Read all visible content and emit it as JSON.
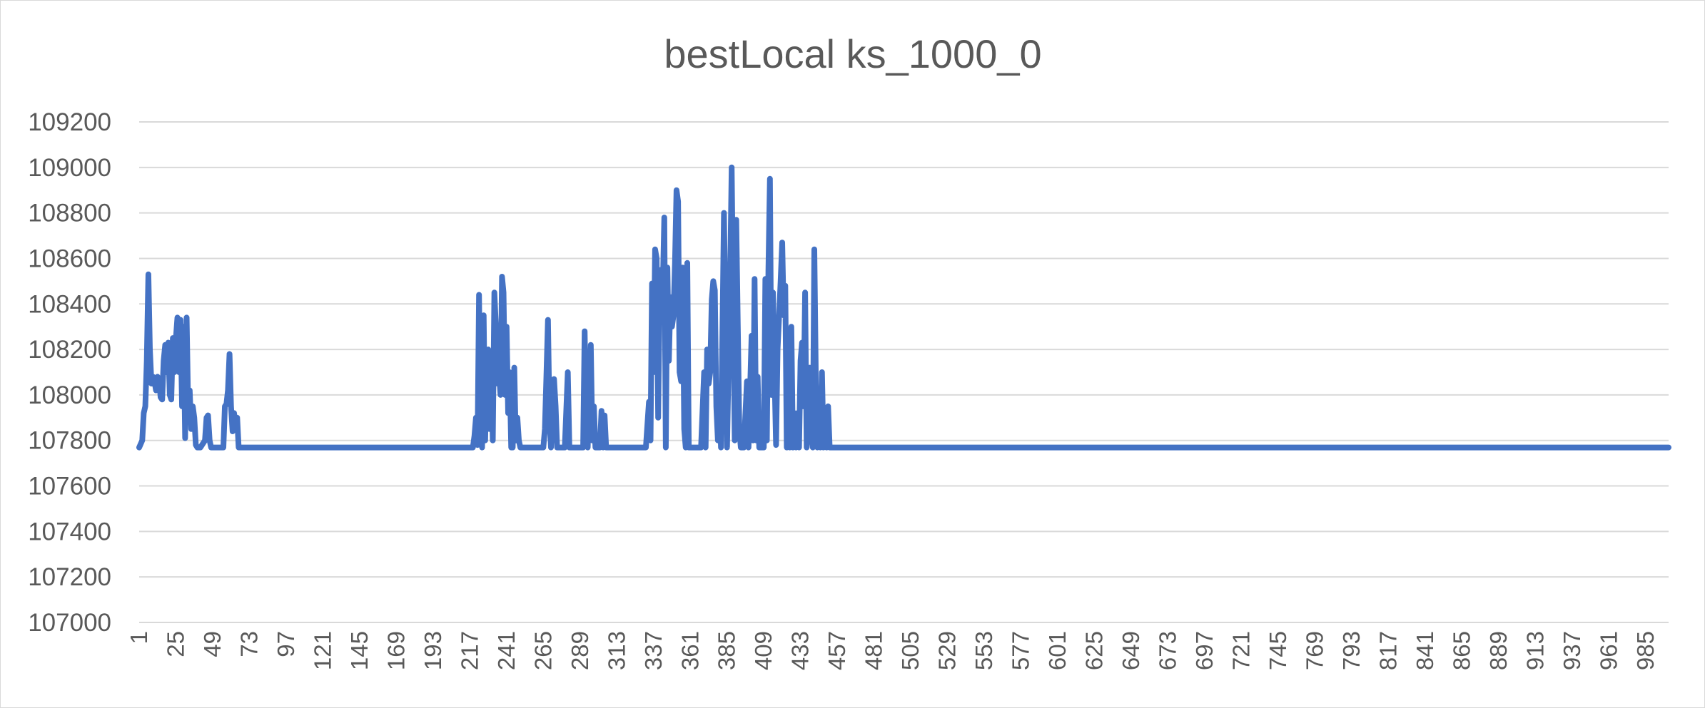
{
  "chart_data": {
    "type": "line",
    "title": "bestLocal ks_1000_0",
    "xlabel": "",
    "ylabel": "",
    "ylim": [
      107000,
      109200
    ],
    "yticks": [
      107000,
      107200,
      107400,
      107600,
      107800,
      108000,
      108200,
      108400,
      108600,
      108800,
      109000,
      109200
    ],
    "x_range": [
      1,
      1000
    ],
    "xtick_labels": [
      "1",
      "25",
      "49",
      "73",
      "97",
      "121",
      "145",
      "169",
      "193",
      "217",
      "241",
      "265",
      "289",
      "313",
      "337",
      "361",
      "385",
      "409",
      "433",
      "457",
      "481",
      "505",
      "529",
      "553",
      "577",
      "601",
      "625",
      "649",
      "673",
      "697",
      "721",
      "745",
      "769",
      "793",
      "817",
      "841",
      "865",
      "889",
      "913",
      "937",
      "961",
      "985"
    ],
    "grid": "horizontal",
    "legend": "none",
    "series_color": "#4472c4",
    "series": [
      {
        "baseline": 107769,
        "points": [
          [
            1,
            107769
          ],
          [
            3,
            107800
          ],
          [
            4,
            107920
          ],
          [
            5,
            107950
          ],
          [
            6,
            108150
          ],
          [
            7,
            108530
          ],
          [
            8,
            108200
          ],
          [
            9,
            108050
          ],
          [
            10,
            108080
          ],
          [
            11,
            108060
          ],
          [
            12,
            108020
          ],
          [
            13,
            108080
          ],
          [
            14,
            108070
          ],
          [
            15,
            107990
          ],
          [
            16,
            107980
          ],
          [
            17,
            108150
          ],
          [
            18,
            108220
          ],
          [
            19,
            108100
          ],
          [
            20,
            108230
          ],
          [
            21,
            108000
          ],
          [
            22,
            107980
          ],
          [
            23,
            108250
          ],
          [
            24,
            108100
          ],
          [
            25,
            108250
          ],
          [
            26,
            108340
          ],
          [
            27,
            108100
          ],
          [
            28,
            108330
          ],
          [
            29,
            107950
          ],
          [
            30,
            108300
          ],
          [
            31,
            107810
          ],
          [
            32,
            108340
          ],
          [
            33,
            107950
          ],
          [
            34,
            108020
          ],
          [
            35,
            107850
          ],
          [
            36,
            107950
          ],
          [
            37,
            107900
          ],
          [
            38,
            107780
          ],
          [
            39,
            107769
          ],
          [
            41,
            107769
          ],
          [
            44,
            107800
          ],
          [
            45,
            107900
          ],
          [
            46,
            107910
          ],
          [
            47,
            107800
          ],
          [
            48,
            107769
          ],
          [
            51,
            107769
          ],
          [
            54,
            107769
          ],
          [
            56,
            107769
          ],
          [
            57,
            107950
          ],
          [
            58,
            107960
          ],
          [
            59,
            108020
          ],
          [
            60,
            108180
          ],
          [
            61,
            107950
          ],
          [
            62,
            107840
          ],
          [
            63,
            107920
          ],
          [
            64,
            107850
          ],
          [
            65,
            107900
          ],
          [
            66,
            107769
          ],
          [
            219,
            107769
          ],
          [
            220,
            107820
          ],
          [
            221,
            107900
          ],
          [
            222,
            107780
          ],
          [
            223,
            108440
          ],
          [
            224,
            107800
          ],
          [
            225,
            107769
          ],
          [
            226,
            108350
          ],
          [
            227,
            107800
          ],
          [
            228,
            108150
          ],
          [
            229,
            108200
          ],
          [
            230,
            107850
          ],
          [
            231,
            108100
          ],
          [
            232,
            107800
          ],
          [
            233,
            108450
          ],
          [
            234,
            108300
          ],
          [
            235,
            108050
          ],
          [
            236,
            108100
          ],
          [
            237,
            108000
          ],
          [
            238,
            108520
          ],
          [
            239,
            108450
          ],
          [
            240,
            108000
          ],
          [
            241,
            108300
          ],
          [
            242,
            107920
          ],
          [
            243,
            108100
          ],
          [
            244,
            107769
          ],
          [
            245,
            107769
          ],
          [
            246,
            108120
          ],
          [
            247,
            107800
          ],
          [
            248,
            107900
          ],
          [
            249,
            107800
          ],
          [
            250,
            107769
          ],
          [
            265,
            107769
          ],
          [
            266,
            107850
          ],
          [
            267,
            108080
          ],
          [
            268,
            108330
          ],
          [
            269,
            107900
          ],
          [
            270,
            107769
          ],
          [
            272,
            108070
          ],
          [
            273,
            107950
          ],
          [
            274,
            107769
          ],
          [
            279,
            107769
          ],
          [
            281,
            108100
          ],
          [
            282,
            107769
          ],
          [
            291,
            107769
          ],
          [
            292,
            108280
          ],
          [
            293,
            107850
          ],
          [
            294,
            107769
          ],
          [
            296,
            108220
          ],
          [
            297,
            107800
          ],
          [
            298,
            107950
          ],
          [
            299,
            107769
          ],
          [
            302,
            107769
          ],
          [
            303,
            107930
          ],
          [
            304,
            107769
          ],
          [
            305,
            107910
          ],
          [
            306,
            107769
          ],
          [
            332,
            107769
          ],
          [
            334,
            107970
          ],
          [
            335,
            107800
          ],
          [
            336,
            108490
          ],
          [
            337,
            108100
          ],
          [
            338,
            108640
          ],
          [
            339,
            108600
          ],
          [
            340,
            107900
          ],
          [
            341,
            108450
          ],
          [
            342,
            108550
          ],
          [
            343,
            108450
          ],
          [
            344,
            108780
          ],
          [
            345,
            107769
          ],
          [
            346,
            108560
          ],
          [
            347,
            108150
          ],
          [
            348,
            108430
          ],
          [
            349,
            108300
          ],
          [
            350,
            108350
          ],
          [
            351,
            108580
          ],
          [
            352,
            108900
          ],
          [
            353,
            108850
          ],
          [
            354,
            108100
          ],
          [
            355,
            108060
          ],
          [
            356,
            108560
          ],
          [
            357,
            107850
          ],
          [
            358,
            107769
          ],
          [
            359,
            108580
          ],
          [
            360,
            107769
          ],
          [
            368,
            107769
          ],
          [
            370,
            108100
          ],
          [
            371,
            107769
          ],
          [
            372,
            108200
          ],
          [
            373,
            108050
          ],
          [
            374,
            108100
          ],
          [
            375,
            108420
          ],
          [
            376,
            108500
          ],
          [
            377,
            108460
          ],
          [
            378,
            107950
          ],
          [
            379,
            107800
          ],
          [
            380,
            108030
          ],
          [
            381,
            107769
          ],
          [
            383,
            108800
          ],
          [
            384,
            108300
          ],
          [
            385,
            107769
          ],
          [
            387,
            108500
          ],
          [
            388,
            109000
          ],
          [
            389,
            108400
          ],
          [
            390,
            107800
          ],
          [
            391,
            108770
          ],
          [
            392,
            108300
          ],
          [
            393,
            107850
          ],
          [
            394,
            107769
          ],
          [
            396,
            107769
          ],
          [
            398,
            108060
          ],
          [
            399,
            107769
          ],
          [
            401,
            108260
          ],
          [
            402,
            107800
          ],
          [
            403,
            108510
          ],
          [
            404,
            107800
          ],
          [
            405,
            108080
          ],
          [
            406,
            107769
          ],
          [
            409,
            107769
          ],
          [
            410,
            108510
          ],
          [
            411,
            107800
          ],
          [
            412,
            108550
          ],
          [
            413,
            108950
          ],
          [
            414,
            108000
          ],
          [
            415,
            108450
          ],
          [
            416,
            108100
          ],
          [
            417,
            107780
          ],
          [
            418,
            108200
          ],
          [
            419,
            108350
          ],
          [
            420,
            108500
          ],
          [
            421,
            108670
          ],
          [
            422,
            108350
          ],
          [
            423,
            108480
          ],
          [
            424,
            107769
          ],
          [
            425,
            108100
          ],
          [
            426,
            107769
          ],
          [
            427,
            108300
          ],
          [
            428,
            107769
          ],
          [
            429,
            107920
          ],
          [
            430,
            107769
          ],
          [
            431,
            107920
          ],
          [
            432,
            107769
          ],
          [
            433,
            108150
          ],
          [
            434,
            108230
          ],
          [
            435,
            107950
          ],
          [
            436,
            108450
          ],
          [
            437,
            107769
          ],
          [
            439,
            108120
          ],
          [
            440,
            107850
          ],
          [
            441,
            107769
          ],
          [
            442,
            108640
          ],
          [
            443,
            108050
          ],
          [
            444,
            107769
          ],
          [
            445,
            108000
          ],
          [
            446,
            107769
          ],
          [
            447,
            108100
          ],
          [
            448,
            107769
          ],
          [
            449,
            107850
          ],
          [
            450,
            107769
          ],
          [
            451,
            107950
          ],
          [
            452,
            107769
          ],
          [
            1000,
            107769
          ]
        ]
      }
    ]
  }
}
